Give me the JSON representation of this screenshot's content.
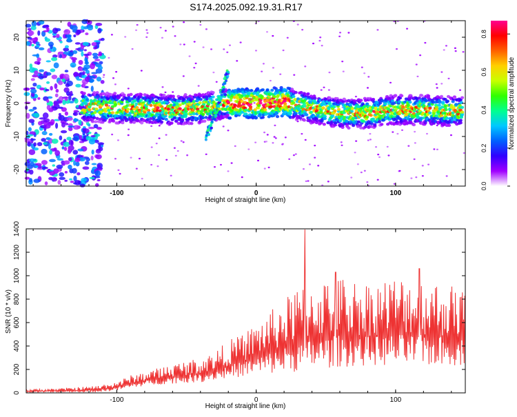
{
  "page": {
    "title": "S174.2025.092.19.31.R17"
  },
  "colorbar": {
    "label": "Normalized spectral amplitude",
    "ticks": [
      "0.0",
      "0.2",
      "0.4",
      "0.6",
      "0.8"
    ],
    "tick_values": [
      0.0,
      0.2,
      0.4,
      0.6,
      0.8
    ],
    "range": [
      0.0,
      0.87
    ],
    "colors": [
      "#ffffff",
      "#a000ff",
      "#3000ff",
      "#0060ff",
      "#00c8ff",
      "#00ff90",
      "#30ff00",
      "#c8ff00",
      "#ffd000",
      "#ff6000",
      "#ff0000",
      "#ff0090"
    ]
  },
  "chart_data": [
    {
      "type": "heatmap",
      "xlabel": "Height of straight line (km)",
      "ylabel": "Frequency (Hz)",
      "xlim": [
        -165,
        150
      ],
      "ylim": [
        -25,
        25
      ],
      "xticks": [
        -100,
        0,
        100
      ],
      "yticks": [
        -20,
        -10,
        0,
        10,
        20
      ],
      "colormap": "white-purple-blue-cyan-green-yellow-red-magenta",
      "ridge": {
        "x": [
          -120,
          -100,
          -80,
          -60,
          -40,
          -20,
          0,
          20,
          40,
          60,
          80,
          100,
          120,
          145
        ],
        "y": [
          -1,
          -1.5,
          -1.5,
          -2,
          -1.5,
          0,
          0,
          0.5,
          -1.5,
          -3,
          -3,
          -2,
          -2,
          -2.5
        ]
      },
      "branch": {
        "x": [
          -36,
          -30,
          -25,
          -20
        ],
        "y": [
          -10,
          -4,
          3,
          10
        ]
      }
    },
    {
      "type": "line",
      "xlabel": "Height of straight line (km)",
      "ylabel": "SNR (10 * v/v)",
      "xlim": [
        -165,
        150
      ],
      "ylim": [
        0,
        1400
      ],
      "xticks": [
        -100,
        0,
        100
      ],
      "yticks": [
        0,
        200,
        400,
        600,
        800,
        1000,
        1200,
        1400
      ],
      "color": "#ee3333",
      "envelope": {
        "x": [
          -165,
          -140,
          -115,
          -100,
          -90,
          -80,
          -60,
          -40,
          -30,
          -20,
          -10,
          0,
          10,
          20,
          30,
          40,
          60,
          80,
          100,
          120,
          150
        ],
        "low": [
          5,
          5,
          5,
          20,
          40,
          60,
          80,
          90,
          110,
          120,
          140,
          150,
          160,
          170,
          180,
          200,
          220,
          230,
          230,
          230,
          230
        ],
        "high": [
          30,
          40,
          60,
          100,
          150,
          180,
          250,
          300,
          350,
          450,
          500,
          600,
          700,
          800,
          900,
          950,
          1000,
          950,
          1000,
          980,
          900
        ]
      },
      "peaks": [
        {
          "x": 35,
          "y": 1395
        },
        {
          "x": 57,
          "y": 1030
        },
        {
          "x": 117,
          "y": 1060
        },
        {
          "x": 147,
          "y": 820
        }
      ]
    }
  ]
}
